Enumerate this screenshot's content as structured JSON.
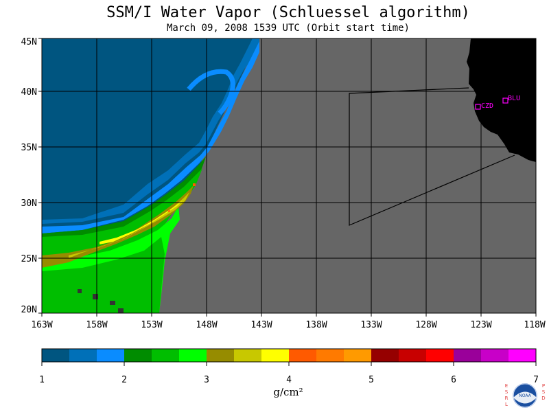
{
  "header": {
    "title": "SSM/I Water Vapor (Schluessel algorithm)",
    "subtitle": "March 09, 2008  1539 UTC  (Orbit start time)"
  },
  "map": {
    "lat_labels": [
      "45N",
      "40N",
      "35N",
      "30N",
      "25N",
      "20N"
    ],
    "lon_labels": [
      "163W",
      "158W",
      "153W",
      "148W",
      "143W",
      "138W",
      "133W",
      "128W",
      "123W",
      "118W"
    ],
    "stations": [
      "CZD",
      "BLU"
    ],
    "colors": {
      "no_data": "#666666",
      "land": "#000000",
      "grid": "#000000",
      "station": "#ff00ff"
    }
  },
  "colorbar": {
    "colors": [
      "#005580",
      "#0070b8",
      "#0a8cff",
      "#008c00",
      "#00be00",
      "#00ff00",
      "#968c00",
      "#c8c800",
      "#ffff00",
      "#ff5a00",
      "#ff7a00",
      "#ff9a00",
      "#960000",
      "#c80000",
      "#ff0000",
      "#9a009a",
      "#c800c8",
      "#ff00ff"
    ],
    "tick_labels": [
      "1",
      "2",
      "3",
      "4",
      "5",
      "6",
      "7"
    ],
    "unit_label": "g/cm²"
  },
  "logo": {
    "left_text": "ESRL",
    "right_text": "PSD",
    "center_text": "NOAA"
  }
}
